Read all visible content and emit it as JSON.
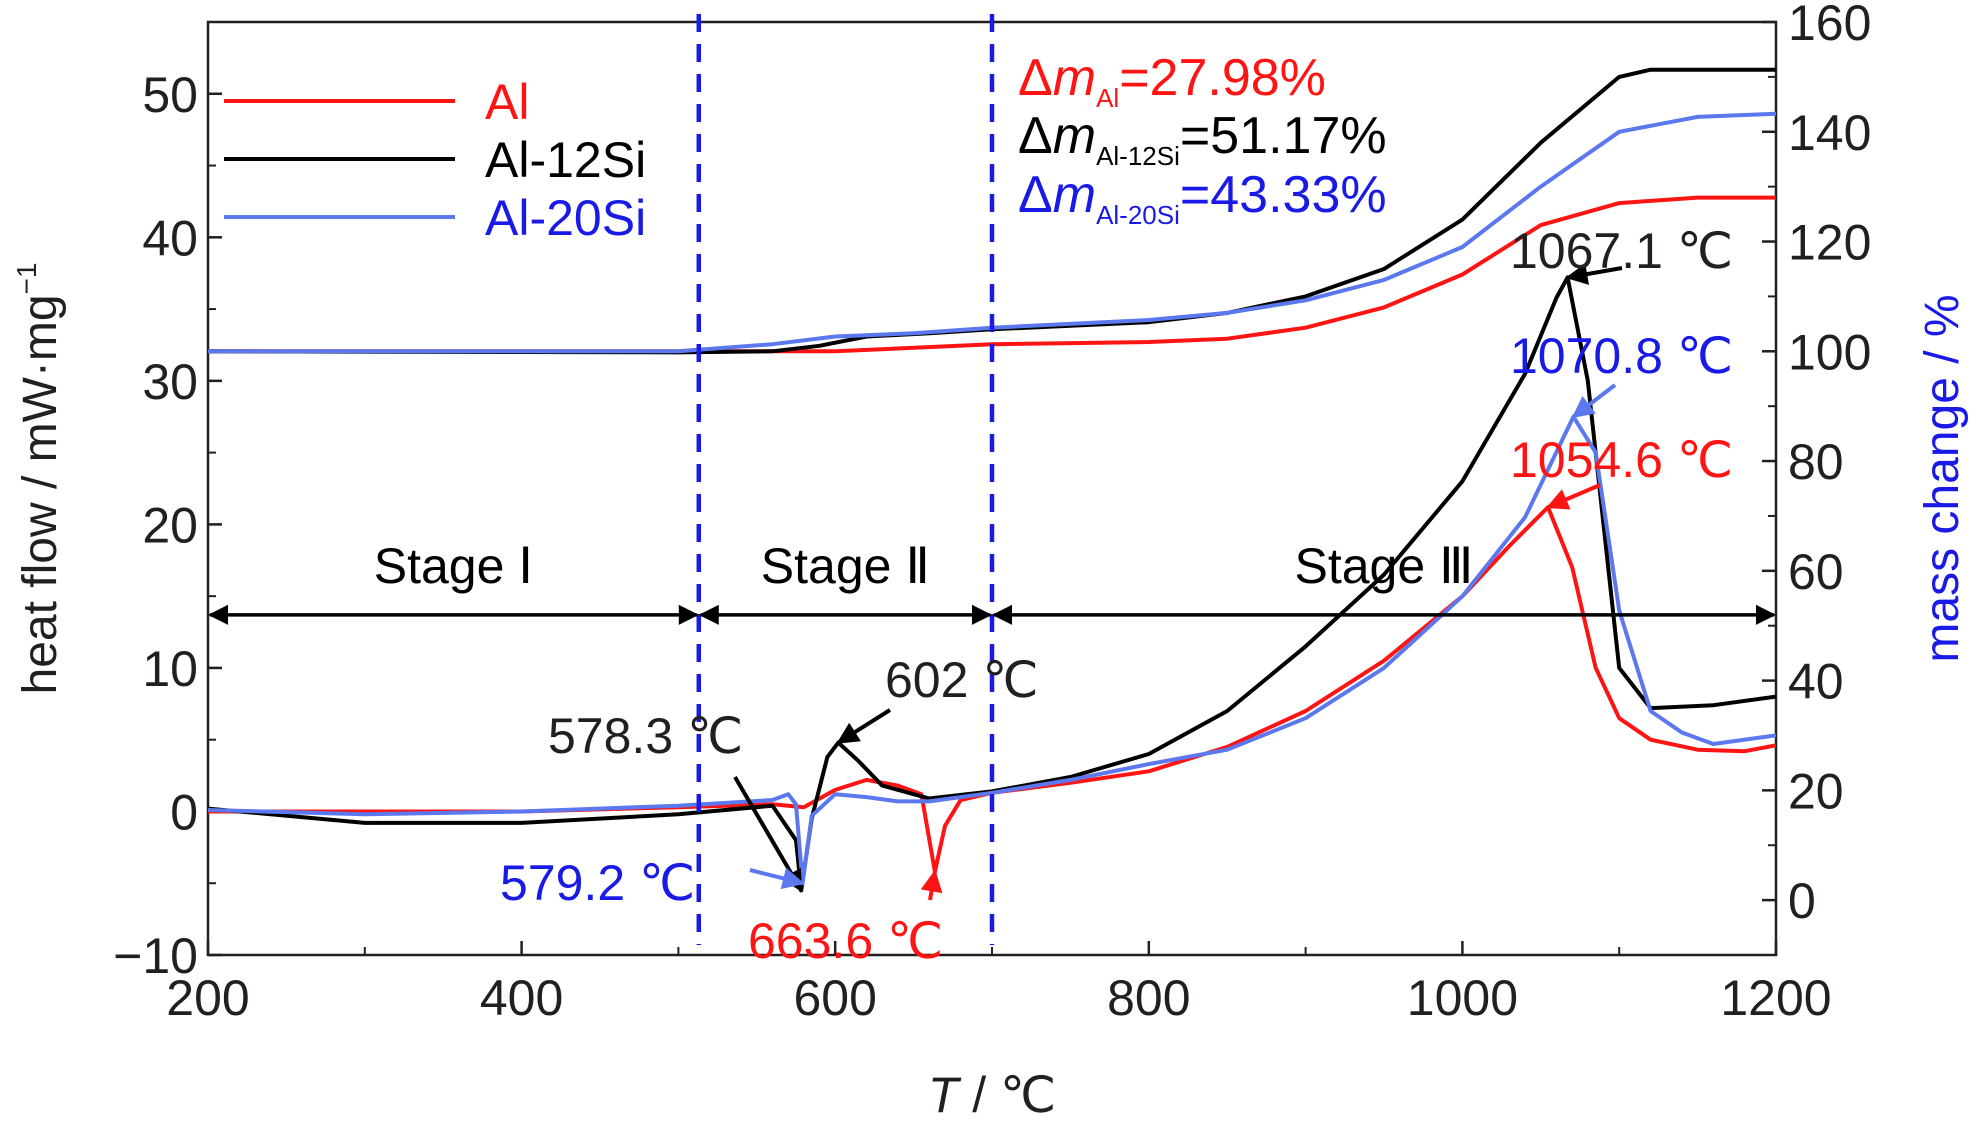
{
  "colors": {
    "Al": "#ff1414",
    "Al-12Si": "#000000",
    "Al-20Si": "#5b78ee",
    "divider": "#1a1ae6",
    "axis": "#231f20"
  },
  "chart_data": {
    "type": "line",
    "xlabel_italic": "T",
    "xlabel_unit": " / ℃",
    "ylabel": "heat flow / mW·mg",
    "ylabel_sup": "−1",
    "y2label": "mass change / %",
    "xlim": [
      200,
      1200
    ],
    "ylim": [
      -10,
      55
    ],
    "y2lim": [
      -10,
      160
    ],
    "x_ticks": [
      "200",
      "400",
      "600",
      "800",
      "1000",
      "1200"
    ],
    "y_ticks": [
      "−10",
      "0",
      "10",
      "20",
      "30",
      "40",
      "50"
    ],
    "y2_ticks": [
      "0",
      "20",
      "40",
      "60",
      "80",
      "100",
      "120",
      "140",
      "160"
    ],
    "legend": [
      {
        "label": "Al",
        "key": "Al"
      },
      {
        "label": "Al-12Si",
        "key": "Al-12Si"
      },
      {
        "label": "Al-20Si",
        "key": "Al-20Si"
      }
    ],
    "mass_change_text": [
      {
        "pre": "Δ",
        "m": "m",
        "sub": "Al",
        "value": "=27.98%",
        "key": "Al"
      },
      {
        "pre": "Δ",
        "m": "m",
        "sub": "Al-12Si",
        "value": "=51.17%",
        "key": "Al-12Si"
      },
      {
        "pre": "Δ",
        "m": "m",
        "sub": "Al-20Si",
        "value": "=43.33%",
        "key": "Al-20Si"
      }
    ],
    "stages": [
      {
        "label": "Stage   Ⅰ",
        "from": 200,
        "to": 513
      },
      {
        "label": "Stage   Ⅱ",
        "from": 513,
        "to": 700
      },
      {
        "label": "Stage   Ⅲ",
        "from": 700,
        "to": 1200
      }
    ],
    "stage_arrow_y": 13.7,
    "dividers_x": [
      513,
      700
    ],
    "peaks": [
      {
        "label": "578.3 ℃",
        "key": "Al-12Si",
        "x": 578.3,
        "y": -5.5
      },
      {
        "label": "602 ℃",
        "key": "Al-12Si",
        "x": 602,
        "y": 4.8
      },
      {
        "label": "579.2 ℃",
        "key": "Al-20Si",
        "x": 579.2,
        "y": -5.0
      },
      {
        "label": "663.6 ℃",
        "key": "Al",
        "x": 663.6,
        "y": -4.2
      },
      {
        "label": "1067.1 ℃",
        "key": "Al-12Si",
        "x": 1067.1,
        "y": 37.2
      },
      {
        "label": "1070.8 ℃",
        "key": "Al-20Si",
        "x": 1070.8,
        "y": 27.5
      },
      {
        "label": "1054.6 ℃",
        "key": "Al",
        "x": 1054.6,
        "y": 21.2
      }
    ],
    "series": [
      {
        "name": "Al",
        "key": "Al",
        "axis": "heat_flow",
        "x": [
          200,
          300,
          400,
          500,
          560,
          580,
          600,
          620,
          640,
          655,
          663.6,
          670,
          680,
          700,
          750,
          800,
          850,
          900,
          950,
          1000,
          1030,
          1054.6,
          1070,
          1085,
          1100,
          1120,
          1150,
          1180,
          1200
        ],
        "y": [
          0,
          0,
          0,
          0.3,
          0.5,
          0.3,
          1.5,
          2.2,
          1.8,
          1.2,
          -4.2,
          -1.0,
          0.8,
          1.3,
          2.0,
          2.8,
          4.5,
          7.0,
          10.5,
          15.0,
          18.5,
          21.2,
          17.0,
          10.0,
          6.5,
          5.0,
          4.3,
          4.2,
          4.6
        ]
      },
      {
        "name": "Al-12Si",
        "key": "Al-12Si",
        "axis": "heat_flow",
        "x": [
          200,
          300,
          400,
          500,
          560,
          575,
          578.3,
          585,
          595,
          602,
          615,
          630,
          660,
          700,
          750,
          800,
          850,
          900,
          950,
          1000,
          1040,
          1060,
          1067.1,
          1080,
          1090,
          1100,
          1120,
          1160,
          1200
        ],
        "y": [
          0.2,
          -0.8,
          -0.8,
          -0.2,
          0.4,
          -2.0,
          -5.5,
          -0.5,
          3.8,
          4.8,
          3.5,
          1.8,
          0.9,
          1.4,
          2.4,
          4.0,
          7.0,
          11.5,
          16.5,
          23.0,
          30.5,
          35.8,
          37.2,
          30.0,
          20.0,
          10.0,
          7.2,
          7.4,
          8.0
        ]
      },
      {
        "name": "Al-20Si",
        "key": "Al-20Si",
        "axis": "heat_flow",
        "x": [
          200,
          300,
          400,
          500,
          560,
          570,
          575,
          579.2,
          585,
          600,
          620,
          640,
          660,
          700,
          750,
          800,
          850,
          900,
          950,
          1000,
          1040,
          1070.8,
          1085,
          1100,
          1120,
          1140,
          1160,
          1200
        ],
        "y": [
          0.1,
          -0.2,
          0,
          0.4,
          0.8,
          1.2,
          0.5,
          -5.0,
          -0.3,
          1.2,
          1.0,
          0.7,
          0.7,
          1.3,
          2.2,
          3.3,
          4.3,
          6.5,
          10.0,
          15.0,
          20.5,
          27.5,
          25.0,
          14.0,
          7.0,
          5.5,
          4.7,
          5.3
        ]
      },
      {
        "name": "Al",
        "key": "Al",
        "axis": "mass_change",
        "x": [
          200,
          500,
          600,
          700,
          800,
          850,
          900,
          950,
          1000,
          1050,
          1100,
          1150,
          1200
        ],
        "y": [
          100,
          100,
          100,
          101.3,
          101.7,
          102.3,
          104.3,
          108,
          114,
          123,
          127,
          128,
          128
        ]
      },
      {
        "name": "Al-12Si",
        "key": "Al-12Si",
        "axis": "mass_change",
        "x": [
          200,
          500,
          560,
          590,
          620,
          660,
          700,
          800,
          850,
          900,
          950,
          1000,
          1050,
          1100,
          1120,
          1150,
          1200
        ],
        "y": [
          100,
          99.8,
          100,
          101,
          102.7,
          103.3,
          104,
          105.3,
          107,
          110,
          115,
          124,
          138,
          150,
          151.3,
          151.3,
          151.3
        ]
      },
      {
        "name": "Al-20Si",
        "key": "Al-20Si",
        "axis": "mass_change",
        "x": [
          200,
          500,
          560,
          600,
          650,
          700,
          800,
          850,
          900,
          950,
          1000,
          1050,
          1100,
          1150,
          1200
        ],
        "y": [
          100,
          100,
          101.3,
          102.7,
          103.3,
          104.3,
          105.7,
          107,
          109.3,
          113,
          119,
          130,
          140,
          142.7,
          143.3
        ]
      }
    ]
  }
}
